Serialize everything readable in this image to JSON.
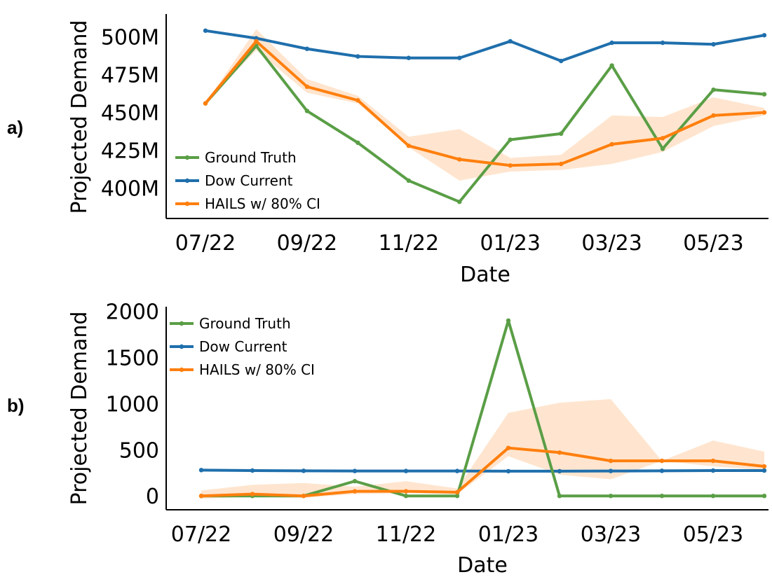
{
  "panels": [
    {
      "label": "a)",
      "xlabel": "Date",
      "ylabel": "Projected Demand"
    },
    {
      "label": "b)",
      "xlabel": "Date",
      "ylabel": "Projected Demand"
    }
  ],
  "chart_data": [
    {
      "type": "line",
      "panel_label": "a)",
      "xlabel": "Date",
      "ylabel": "Projected Demand",
      "x_months": [
        "07/22",
        "08/22",
        "09/22",
        "10/22",
        "11/22",
        "12/22",
        "01/23",
        "02/23",
        "03/23",
        "04/23",
        "05/23",
        "06/23"
      ],
      "x_tick_labels": [
        "07/22",
        "09/22",
        "11/22",
        "01/23",
        "03/23",
        "05/23"
      ],
      "y_tick_values": [
        400,
        425,
        450,
        475,
        500
      ],
      "y_tick_labels": [
        "400M",
        "425M",
        "450M",
        "475M",
        "500M"
      ],
      "ylim": [
        380,
        515
      ],
      "legend": [
        "Ground Truth",
        "Dow Current",
        "HAILS w/ 80% CI"
      ],
      "legend_position": "bottom-left",
      "series": [
        {
          "name": "Ground Truth",
          "color": "#5a9e46",
          "values": [
            456,
            494,
            451,
            430,
            405,
            391,
            432,
            436,
            481,
            426,
            465,
            462
          ]
        },
        {
          "name": "Dow Current",
          "color": "#1f6fac",
          "values": [
            504,
            499,
            492,
            487,
            486,
            486,
            497,
            484,
            496,
            496,
            495,
            501
          ]
        },
        {
          "name": "HAILS w/ 80% CI",
          "color": "#ff7f0e",
          "values": [
            456,
            497,
            467,
            458,
            428,
            419,
            415,
            416,
            429,
            433,
            448,
            450
          ],
          "ci_lower": [
            456,
            491,
            463,
            456,
            427,
            405,
            411,
            412,
            416,
            424,
            441,
            448
          ],
          "ci_upper": [
            456,
            505,
            472,
            461,
            434,
            439,
            420,
            422,
            448,
            447,
            460,
            453
          ]
        }
      ]
    },
    {
      "type": "line",
      "panel_label": "b)",
      "xlabel": "Date",
      "ylabel": "Projected Demand",
      "x_months": [
        "07/22",
        "08/22",
        "09/22",
        "10/22",
        "11/22",
        "12/22",
        "01/23",
        "02/23",
        "03/23",
        "04/23",
        "05/23",
        "06/23"
      ],
      "x_tick_labels": [
        "07/22",
        "09/22",
        "11/22",
        "01/23",
        "03/23",
        "05/23"
      ],
      "y_tick_values": [
        0,
        500,
        1000,
        1500,
        2000
      ],
      "y_tick_labels": [
        "0",
        "500",
        "1000",
        "1500",
        "2000"
      ],
      "ylim": [
        -150,
        2050
      ],
      "legend": [
        "Ground Truth",
        "Dow Current",
        "HAILS w/ 80% CI"
      ],
      "legend_position": "top-left",
      "series": [
        {
          "name": "Ground Truth",
          "color": "#5a9e46",
          "values": [
            0,
            0,
            0,
            160,
            0,
            0,
            1900,
            0,
            0,
            0,
            0,
            0
          ]
        },
        {
          "name": "Dow Current",
          "color": "#1f6fac",
          "values": [
            280,
            275,
            272,
            270,
            270,
            270,
            268,
            268,
            270,
            272,
            275,
            275
          ]
        },
        {
          "name": "HAILS w/ 80% CI",
          "color": "#ff7f0e",
          "values": [
            0,
            20,
            0,
            50,
            50,
            40,
            520,
            470,
            380,
            380,
            380,
            320
          ],
          "ci_lower": [
            -30,
            -10,
            -20,
            20,
            30,
            20,
            430,
            230,
            180,
            380,
            320,
            280
          ],
          "ci_upper": [
            60,
            120,
            140,
            100,
            160,
            80,
            900,
            1010,
            1050,
            380,
            600,
            480
          ]
        }
      ]
    }
  ]
}
